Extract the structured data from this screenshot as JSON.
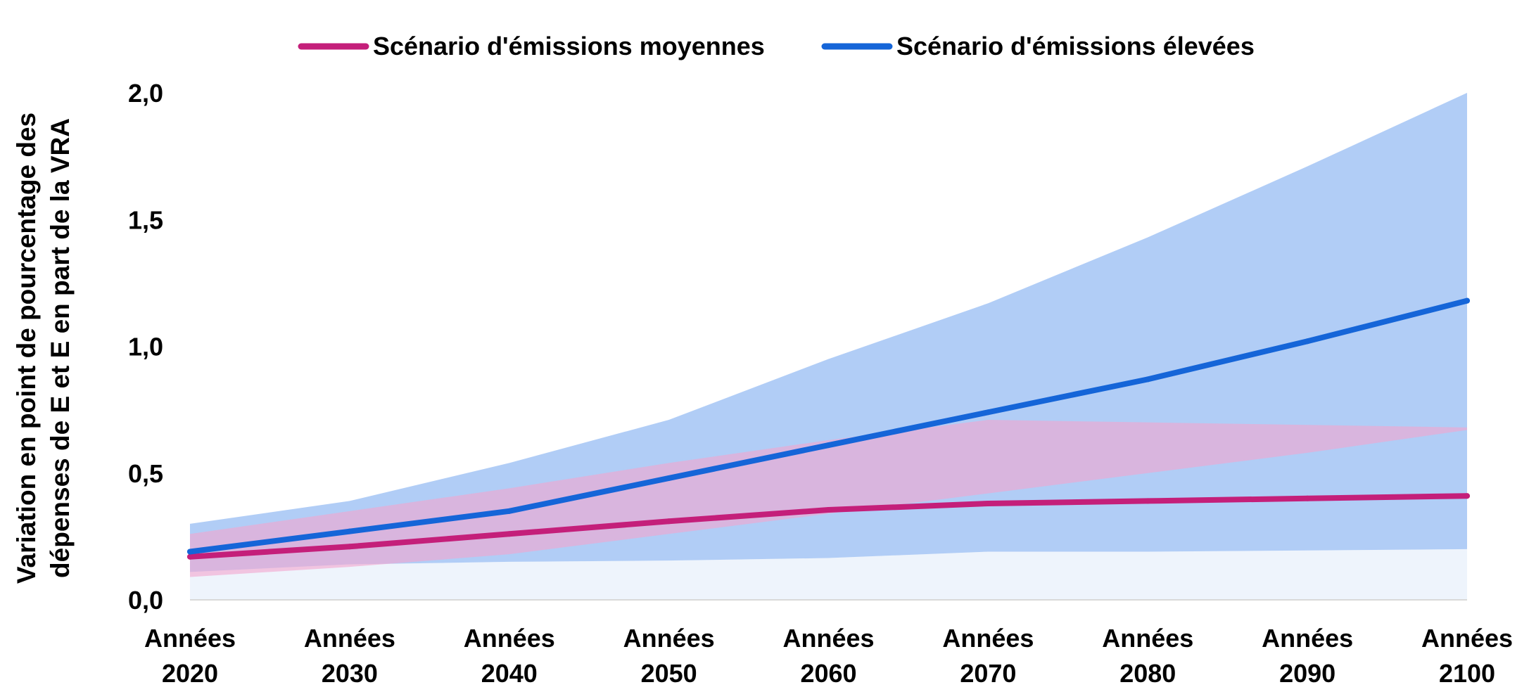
{
  "chart_data": {
    "type": "area",
    "title": "",
    "xlabel": "",
    "ylabel_lines": [
      "Variation en point de pourcentage des",
      "dépenses de E et E en part de la VRA"
    ],
    "categories": [
      [
        "Années",
        "2020"
      ],
      [
        "Années",
        "2030"
      ],
      [
        "Années",
        "2040"
      ],
      [
        "Années",
        "2050"
      ],
      [
        "Années",
        "2060"
      ],
      [
        "Années",
        "2070"
      ],
      [
        "Années",
        "2080"
      ],
      [
        "Années",
        "2090"
      ],
      [
        "Années",
        "2100"
      ]
    ],
    "ylim": [
      0,
      2
    ],
    "yticks": [
      "0,0",
      "0,5",
      "1,0",
      "1,5",
      "2,0"
    ],
    "ytick_values": [
      0,
      0.5,
      1.0,
      1.5,
      2.0
    ],
    "grid": false,
    "legend_position": "top-center",
    "series": [
      {
        "name": "Scénario d'émissions moyennes",
        "color": "#c41f7a",
        "band_color": "#f2a6cf",
        "values": [
          0.17,
          0.21,
          0.26,
          0.31,
          0.355,
          0.38,
          0.39,
          0.4,
          0.41
        ],
        "band_low": [
          0.09,
          0.13,
          0.18,
          0.26,
          0.34,
          0.42,
          0.5,
          0.58,
          0.67
        ],
        "band_high": [
          0.26,
          0.35,
          0.44,
          0.54,
          0.63,
          0.71,
          0.7,
          0.69,
          0.68
        ]
      },
      {
        "name": "Scénario d'émissions élevées",
        "color": "#1565d8",
        "band_color": "#a8c8f5",
        "values": [
          0.19,
          0.27,
          0.35,
          0.48,
          0.61,
          0.74,
          0.87,
          1.02,
          1.18
        ],
        "band_low": [
          0.11,
          0.14,
          0.15,
          0.155,
          0.165,
          0.19,
          0.19,
          0.195,
          0.2
        ],
        "band_high": [
          0.3,
          0.39,
          0.54,
          0.71,
          0.95,
          1.17,
          1.43,
          1.71,
          2.02
        ]
      }
    ]
  }
}
